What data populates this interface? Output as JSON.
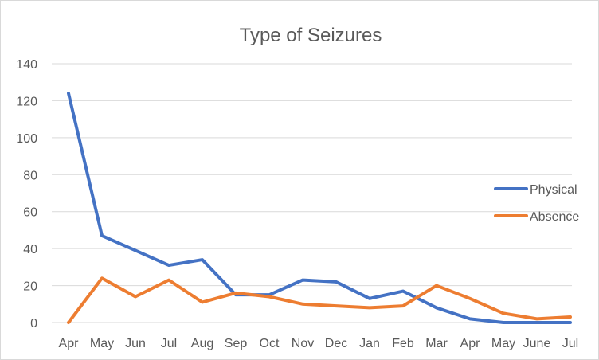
{
  "chart_data": {
    "type": "line",
    "title": "Type of Seizures",
    "xlabel": "",
    "ylabel": "",
    "categories": [
      "Apr",
      "May",
      "Jun",
      "Jul",
      "Aug",
      "Sep",
      "Oct",
      "Nov",
      "Dec",
      "Jan",
      "Feb",
      "Mar",
      "Apr",
      "May",
      "June",
      "Jul"
    ],
    "ylim": [
      0,
      140
    ],
    "yticks": [
      0,
      20,
      40,
      60,
      80,
      100,
      120,
      140
    ],
    "grid": true,
    "legend_position": "right",
    "series": [
      {
        "name": "Physical",
        "color": "#4472c4",
        "values": [
          124,
          47,
          39,
          31,
          34,
          15,
          15,
          23,
          22,
          13,
          17,
          8,
          2,
          0,
          0,
          0
        ]
      },
      {
        "name": "Absence",
        "color": "#ed7d31",
        "values": [
          0,
          24,
          14,
          23,
          11,
          16,
          14,
          10,
          9,
          8,
          9,
          20,
          13,
          5,
          2,
          3
        ]
      }
    ]
  }
}
